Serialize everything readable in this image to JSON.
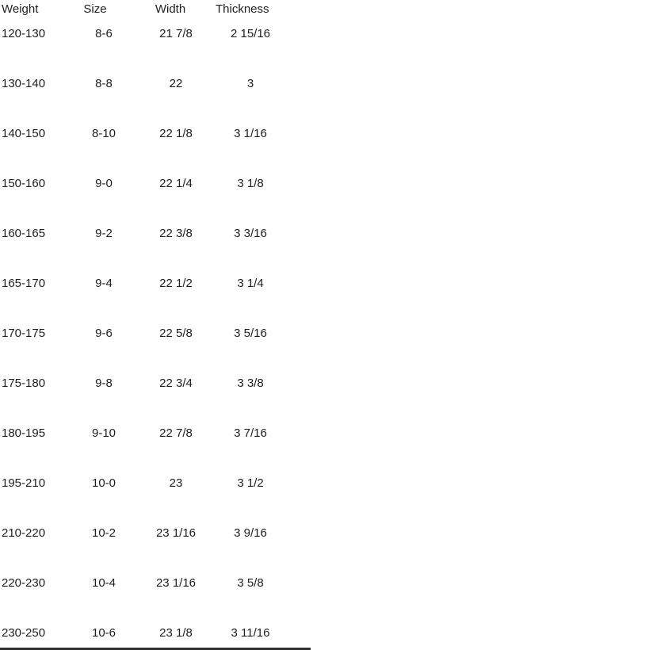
{
  "page": {
    "background": "#ffffff",
    "text_color": "#1e1e1e",
    "bottom_bar_color": "#2f2f2f"
  },
  "table": {
    "columns": [
      "Weight",
      "Size",
      "Width",
      "Thickness"
    ],
    "rows": [
      [
        "120-130",
        "8-6",
        "21 7/8",
        "2 15/16"
      ],
      [
        "130-140",
        "8-8",
        "22",
        "3"
      ],
      [
        "140-150",
        "8-10",
        "22 1/8",
        "3 1/16"
      ],
      [
        "150-160",
        "9-0",
        "22 1/4",
        "3 1/8"
      ],
      [
        "160-165",
        "9-2",
        "22 3/8",
        "3 3/16"
      ],
      [
        "165-170",
        "9-4",
        "22 1/2",
        "3 1/4"
      ],
      [
        "170-175",
        "9-6",
        "22 5/8",
        "3 5/16"
      ],
      [
        "175-180",
        "9-8",
        "22 3/4",
        "3 3/8"
      ],
      [
        "180-195",
        "9-10",
        "22 7/8",
        "3 7/16"
      ],
      [
        "195-210",
        "10-0",
        "23",
        "3 1/2"
      ],
      [
        "210-220",
        "10-2",
        "23 1/16",
        "3 9/16"
      ],
      [
        "220-230",
        "10-4",
        "23 1/16",
        "3 5/8"
      ],
      [
        "230-250",
        "10-6",
        "23 1/8",
        "3 11/16"
      ]
    ]
  }
}
